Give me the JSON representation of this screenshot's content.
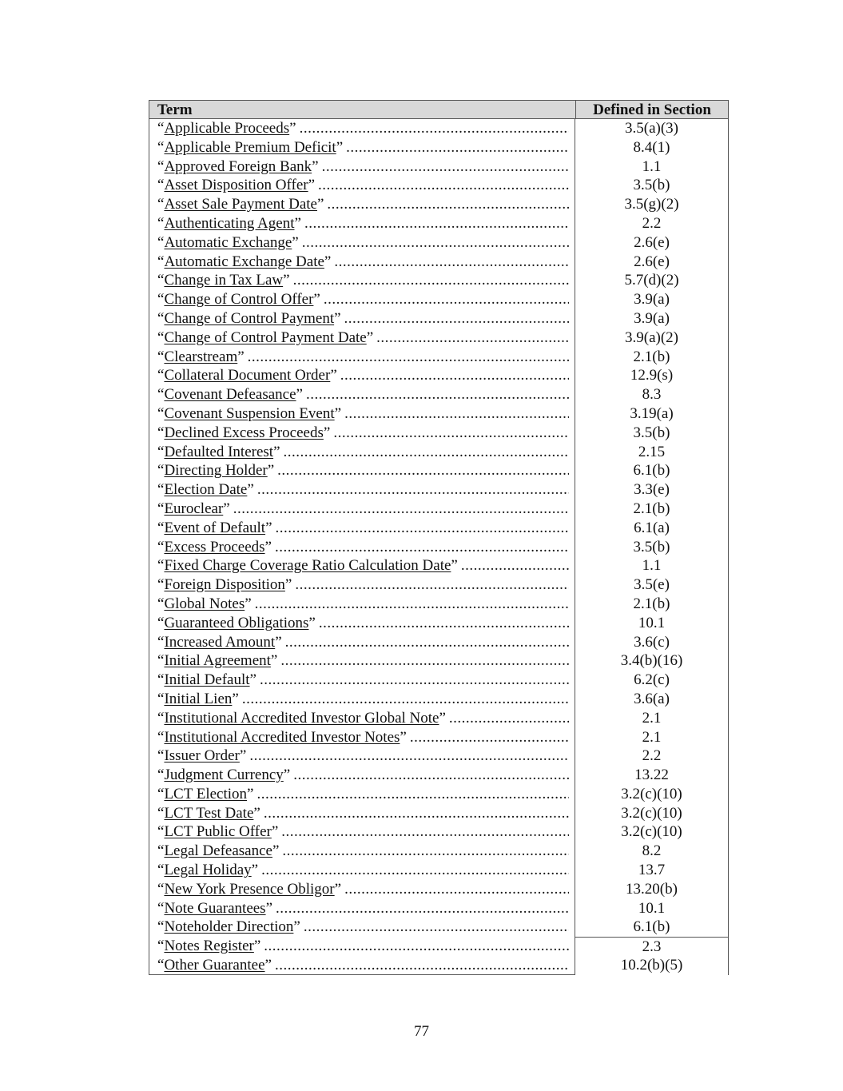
{
  "table": {
    "headers": {
      "term": "Term",
      "section": "Defined in Section"
    },
    "open_quote": "“",
    "close_quote": "”",
    "rows": [
      {
        "term": "Applicable Proceeds",
        "section": "3.5(a)(3)"
      },
      {
        "term": "Applicable Premium Deficit",
        "section": "8.4(1)"
      },
      {
        "term": "Approved Foreign Bank",
        "section": "1.1"
      },
      {
        "term": "Asset Disposition Offer",
        "section": "3.5(b)"
      },
      {
        "term": "Asset Sale Payment Date",
        "section": "3.5(g)(2)"
      },
      {
        "term": "Authenticating Agent",
        "section": "2.2"
      },
      {
        "term": "Automatic Exchange",
        "section": "2.6(e)"
      },
      {
        "term": "Automatic Exchange Date",
        "section": "2.6(e)"
      },
      {
        "term": "Change in Tax Law",
        "section": "5.7(d)(2)"
      },
      {
        "term": "Change of Control Offer",
        "section": "3.9(a)"
      },
      {
        "term": "Change of Control Payment",
        "section": "3.9(a)"
      },
      {
        "term": "Change of Control Payment Date",
        "section": "3.9(a)(2)"
      },
      {
        "term": "Clearstream",
        "section": "2.1(b)"
      },
      {
        "term": "Collateral Document Order",
        "section": "12.9(s)"
      },
      {
        "term": "Covenant Defeasance",
        "section": "8.3"
      },
      {
        "term": "Covenant Suspension Event",
        "section": "3.19(a)"
      },
      {
        "term": "Declined Excess Proceeds",
        "section": "3.5(b)"
      },
      {
        "term": "Defaulted Interest",
        "section": "2.15"
      },
      {
        "term": "Directing Holder",
        "section": "6.1(b)"
      },
      {
        "term": "Election Date",
        "section": "3.3(e)"
      },
      {
        "term": "Euroclear",
        "section": "2.1(b)"
      },
      {
        "term": "Event of Default",
        "section": "6.1(a)"
      },
      {
        "term": "Excess Proceeds",
        "section": "3.5(b)"
      },
      {
        "term": "Fixed Charge Coverage Ratio Calculation Date",
        "section": "1.1"
      },
      {
        "term": "Foreign Disposition",
        "section": "3.5(e)"
      },
      {
        "term": "Global Notes",
        "section": "2.1(b)"
      },
      {
        "term": "Guaranteed Obligations",
        "section": "10.1"
      },
      {
        "term": "Increased Amount",
        "section": "3.6(c)"
      },
      {
        "term": "Initial Agreement",
        "section": "3.4(b)(16)"
      },
      {
        "term": "Initial Default",
        "section": "6.2(c)"
      },
      {
        "term": "Initial Lien",
        "section": "3.6(a)"
      },
      {
        "term": "Institutional Accredited Investor Global Note",
        "section": "2.1"
      },
      {
        "term": "Institutional Accredited Investor Notes",
        "section": "2.1"
      },
      {
        "term": "Issuer Order",
        "section": "2.2"
      },
      {
        "term": "Judgment Currency",
        "section": "13.22"
      },
      {
        "term": "LCT Election",
        "section": "3.2(c)(10)"
      },
      {
        "term": "LCT Test Date",
        "section": "3.2(c)(10)"
      },
      {
        "term": "LCT Public Offer",
        "section": "3.2(c)(10)"
      },
      {
        "term": "Legal Defeasance",
        "section": "8.2"
      },
      {
        "term": "Legal Holiday",
        "section": "13.7"
      },
      {
        "term": "New York Presence Obligor",
        "section": "13.20(b)"
      },
      {
        "term": "Note Guarantees",
        "section": "10.1"
      },
      {
        "term": "Noteholder Direction",
        "section": "6.1(b)"
      },
      {
        "term": "Notes Register",
        "section": "2.3"
      },
      {
        "term": "Other Guarantee",
        "section": "10.2(b)(5)"
      }
    ]
  },
  "page_number": "77"
}
